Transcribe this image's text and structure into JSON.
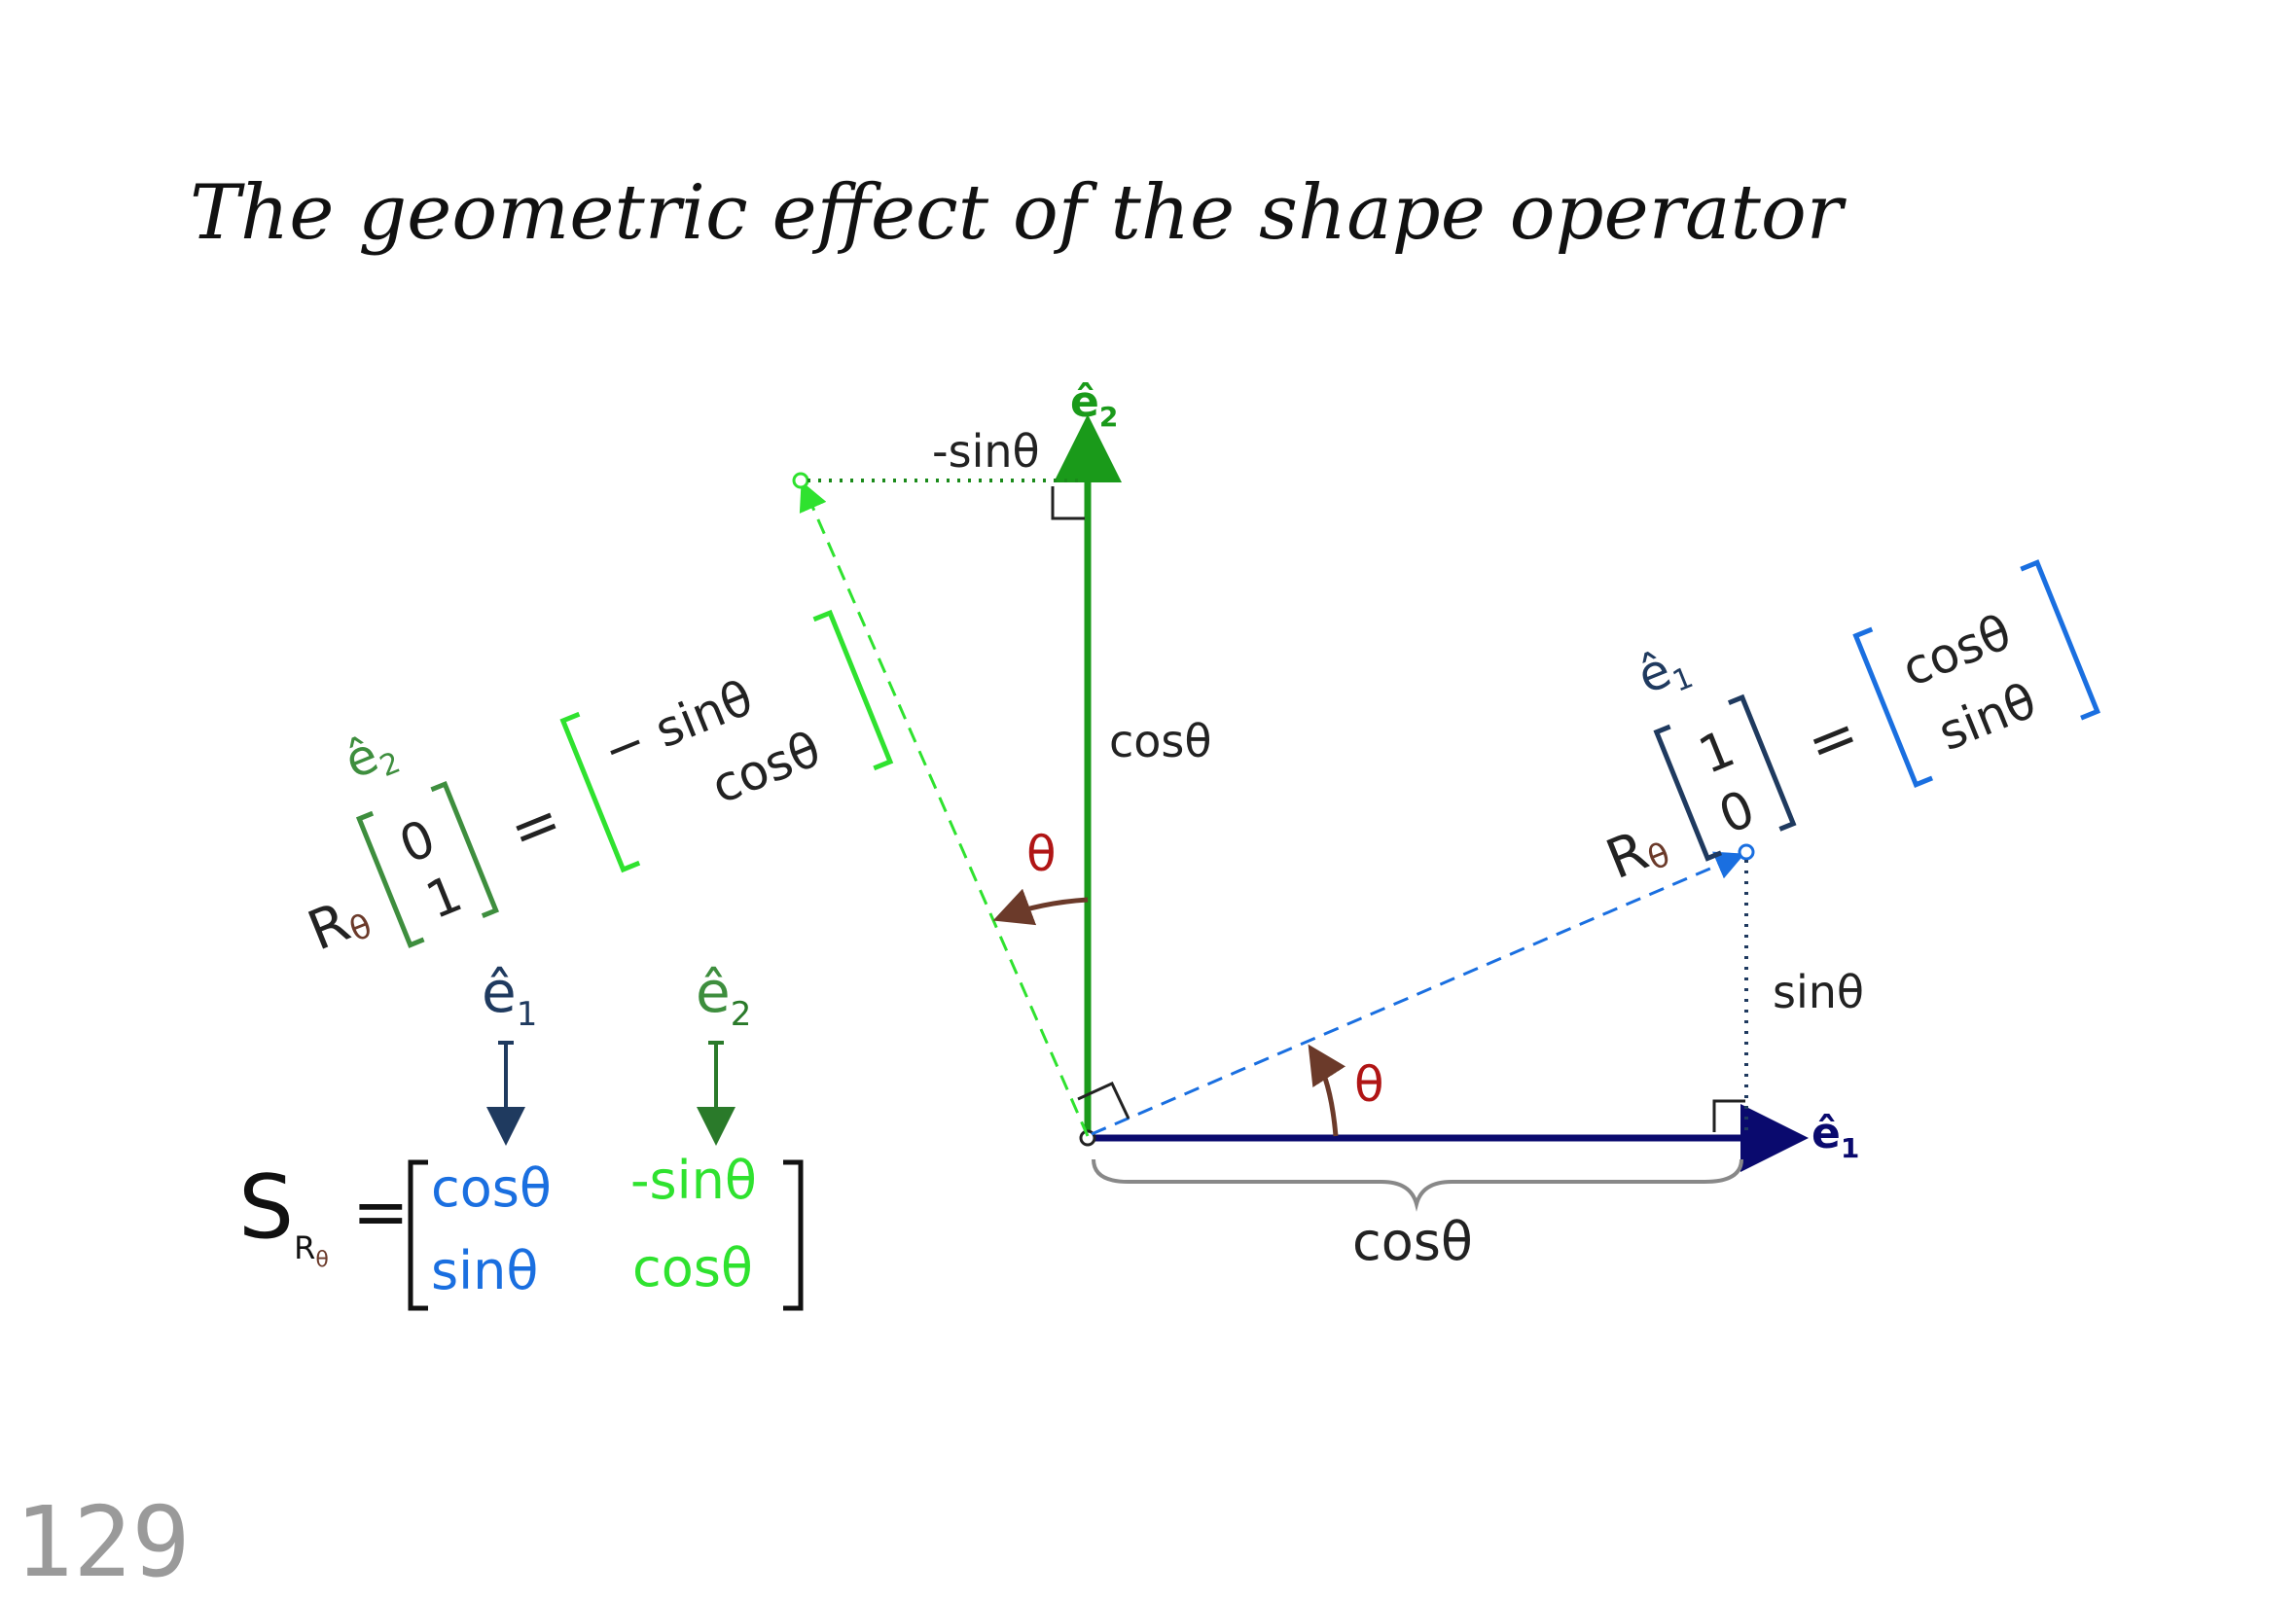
{
  "title": "The geometric effect of the shape operator",
  "page_number": "129",
  "colors": {
    "e1_axis": "#0a0a6e",
    "e2_axis": "#1a9a1a",
    "e1_rotated": "#1a6fe0",
    "e2_rotated": "#2fe22f",
    "label_dark": "#1f3a5f",
    "label_green": "#3e8e3e",
    "theta": "#8b1a1a",
    "angle_arrow": "#6b3a2a",
    "brace": "#888888",
    "trig_brown": "#6b3a2a"
  },
  "axes": {
    "e1_label": "ê",
    "e1_sub": "1",
    "e2_label": "ê",
    "e2_sub": "2"
  },
  "annotations": {
    "neg_sin": "-sinθ",
    "cos_vertical": "cosθ",
    "theta_upper": "θ",
    "theta_lower": "θ",
    "sin_right": "sinθ",
    "cos_bottom": "cosθ"
  },
  "left_equation": {
    "hat_label": "ê",
    "hat_sub": "2",
    "operator": "R",
    "operator_sub": "θ",
    "input_top": "0",
    "input_bottom": "1",
    "equals": "=",
    "out_top": "− sinθ",
    "out_bottom": "cosθ"
  },
  "right_equation": {
    "hat_label": "ê",
    "hat_sub": "1",
    "operator": "R",
    "operator_sub": "θ",
    "input_top": "1",
    "input_bottom": "0",
    "equals": "=",
    "out_top": "cosθ",
    "out_bottom": "sinθ"
  },
  "matrix": {
    "col1_label": "ê",
    "col1_sub": "1",
    "col2_label": "ê",
    "col2_sub": "2",
    "lhs": "S",
    "lhs_sub": "R",
    "lhs_subsub": "θ",
    "equals": "=",
    "r1c1": "cosθ",
    "r1c2": "-sinθ",
    "r2c1": "sinθ",
    "r2c2": "cosθ"
  }
}
